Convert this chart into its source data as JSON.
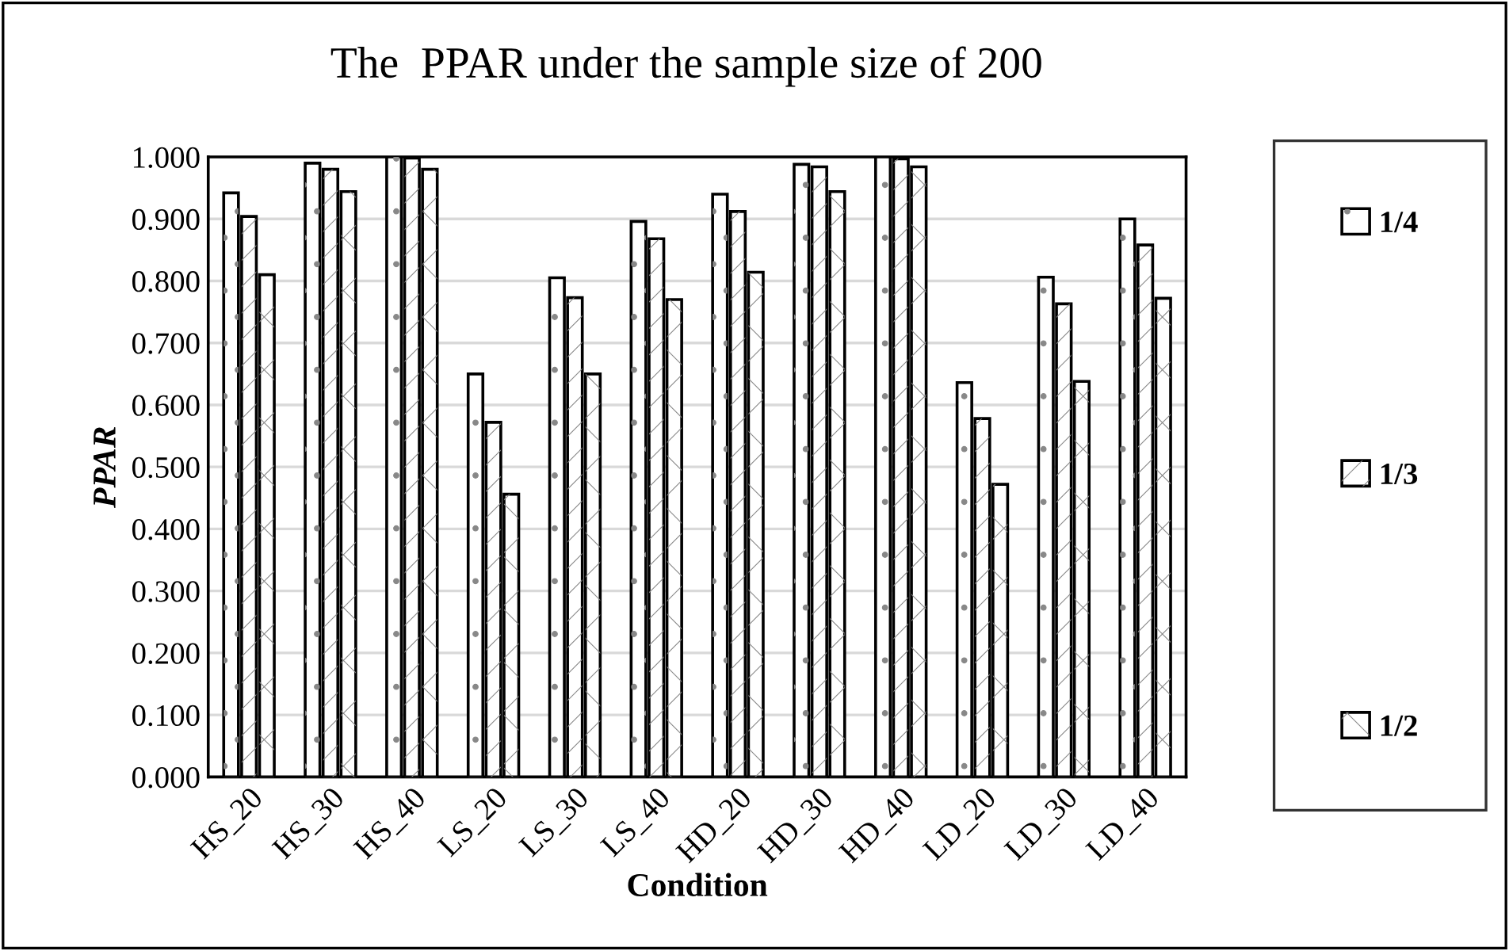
{
  "chart_data": {
    "type": "bar",
    "title": "The  PPAR under the sample size of 200",
    "xlabel": "Condition",
    "ylabel": "PPAR",
    "categories": [
      "HS_20",
      "HS_30",
      "HS_40",
      "LS_20",
      "LS_30",
      "LS_40",
      "HD_20",
      "HD_30",
      "HD_40",
      "LD_20",
      "LD_30",
      "LD_40"
    ],
    "series": [
      {
        "name": "1/4",
        "color": "#ffffff",
        "values": [
          0.942,
          0.99,
          1.0,
          0.65,
          0.805,
          0.896,
          0.94,
          0.988,
          1.0,
          0.636,
          0.806,
          0.9
        ]
      },
      {
        "name": "1/3",
        "color": "#ffffff",
        "values": [
          0.904,
          0.98,
          0.998,
          0.572,
          0.773,
          0.868,
          0.912,
          0.984,
          0.997,
          0.578,
          0.763,
          0.858
        ]
      },
      {
        "name": "1/2",
        "color": "#ffffff",
        "values": [
          0.81,
          0.944,
          0.98,
          0.456,
          0.65,
          0.77,
          0.814,
          0.944,
          0.984,
          0.472,
          0.638,
          0.772
        ]
      }
    ],
    "ylim": [
      0,
      1
    ],
    "yticks": [
      {
        "value": 0,
        "label": "0.000"
      },
      {
        "value": 0.1,
        "label": "0.100"
      },
      {
        "value": 0.2,
        "label": "0.200"
      },
      {
        "value": 0.3,
        "label": "0.300"
      },
      {
        "value": 0.4,
        "label": "0.400"
      },
      {
        "value": 0.5,
        "label": "0.500"
      },
      {
        "value": 0.6,
        "label": "0.600"
      },
      {
        "value": 0.7,
        "label": "0.700"
      },
      {
        "value": 0.8,
        "label": "0.800"
      },
      {
        "value": 0.9,
        "label": "0.900"
      },
      {
        "value": 1,
        "label": "1.000"
      }
    ],
    "grid": "y",
    "legend": "right"
  }
}
